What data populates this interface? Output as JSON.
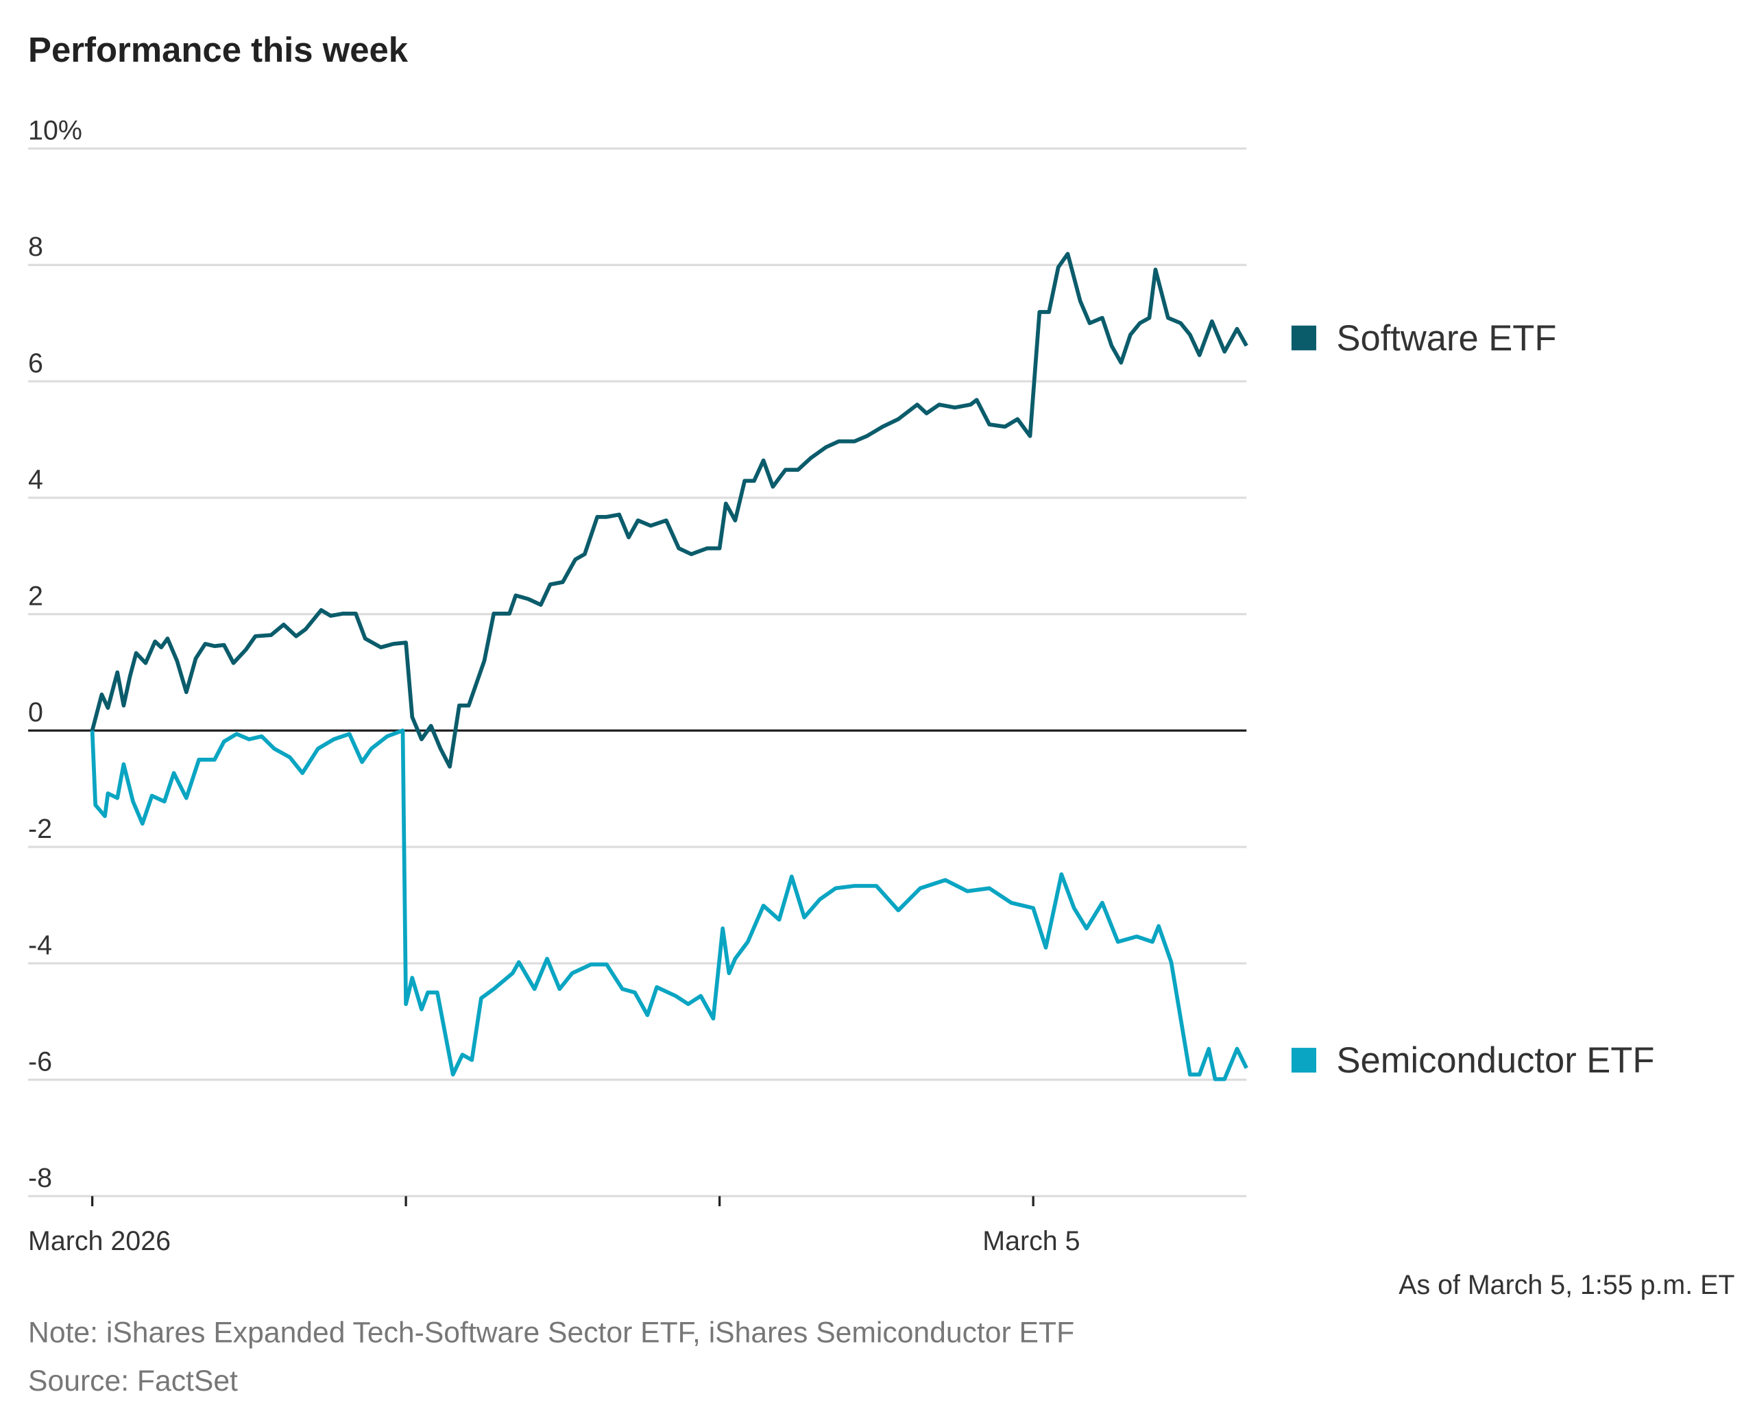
{
  "chart_data": {
    "type": "line",
    "title": "Performance this week",
    "note": "Note: iShares Expanded Tech-Software Sector ETF, iShares Semiconductor ETF",
    "source": "Source: FactSet",
    "timestamp": "As of March 5, 1:55 p.m. ET",
    "ylim": [
      -8,
      10
    ],
    "yticks": [
      {
        "value": 10,
        "label": "10%"
      },
      8,
      6,
      4,
      2,
      0,
      -2,
      -4,
      -6,
      -8
    ],
    "xlim": [
      0,
      3.68
    ],
    "xticks": [
      {
        "value": 0,
        "label": "March 2026"
      },
      {
        "value": 1,
        "label": null
      },
      {
        "value": 2,
        "label": null
      },
      {
        "value": 3,
        "label": "March 5"
      }
    ],
    "grid": true,
    "legend": "right",
    "series": [
      {
        "name": "Software ETF",
        "color": "#0b5c6b",
        "x": [
          0,
          0.03,
          0.05,
          0.08,
          0.1,
          0.12,
          0.14,
          0.17,
          0.2,
          0.22,
          0.24,
          0.27,
          0.3,
          0.33,
          0.36,
          0.39,
          0.42,
          0.45,
          0.49,
          0.52,
          0.57,
          0.61,
          0.65,
          0.68,
          0.73,
          0.76,
          0.8,
          0.84,
          0.87,
          0.92,
          0.96,
          1.0,
          1.02,
          1.05,
          1.08,
          1.11,
          1.14,
          1.17,
          1.2,
          1.25,
          1.28,
          1.33,
          1.35,
          1.39,
          1.43,
          1.46,
          1.5,
          1.54,
          1.57,
          1.61,
          1.64,
          1.68,
          1.71,
          1.74,
          1.78,
          1.83,
          1.87,
          1.91,
          1.96,
          2.0,
          2.02,
          2.05,
          2.08,
          2.11,
          2.14,
          2.17,
          2.21,
          2.25,
          2.29,
          2.34,
          2.38,
          2.43,
          2.47,
          2.52,
          2.57,
          2.63,
          2.66,
          2.7,
          2.75,
          2.8,
          2.82,
          2.86,
          2.91,
          2.95,
          2.99,
          3.02,
          3.05,
          3.08,
          3.11,
          3.15,
          3.18,
          3.22,
          3.25,
          3.28,
          3.31,
          3.34,
          3.37,
          3.39,
          3.43,
          3.47,
          3.5,
          3.53,
          3.57,
          3.61,
          3.65,
          3.68
        ],
        "values": [
          0,
          0.62,
          0.39,
          1.0,
          0.43,
          0.93,
          1.33,
          1.16,
          1.53,
          1.43,
          1.58,
          1.2,
          0.66,
          1.24,
          1.49,
          1.45,
          1.47,
          1.16,
          1.39,
          1.62,
          1.64,
          1.82,
          1.62,
          1.74,
          2.07,
          1.97,
          2.01,
          2.01,
          1.58,
          1.43,
          1.49,
          1.51,
          0.23,
          -0.15,
          0.08,
          -0.31,
          -0.62,
          0.43,
          0.43,
          1.2,
          2.01,
          2.01,
          2.32,
          2.26,
          2.16,
          2.51,
          2.55,
          2.94,
          3.03,
          3.67,
          3.67,
          3.71,
          3.32,
          3.61,
          3.52,
          3.61,
          3.13,
          3.03,
          3.13,
          3.13,
          3.9,
          3.61,
          4.29,
          4.29,
          4.64,
          4.19,
          4.48,
          4.48,
          4.68,
          4.87,
          4.97,
          4.97,
          5.06,
          5.22,
          5.35,
          5.6,
          5.45,
          5.6,
          5.55,
          5.6,
          5.68,
          5.26,
          5.22,
          5.35,
          5.06,
          7.19,
          7.19,
          7.96,
          8.19,
          7.38,
          7.0,
          7.09,
          6.61,
          6.32,
          6.8,
          7.0,
          7.09,
          7.92,
          7.09,
          7.0,
          6.8,
          6.45,
          7.03,
          6.51,
          6.9,
          6.61
        ]
      },
      {
        "name": "Semiconductor ETF",
        "color": "#0aa5c2",
        "x": [
          0,
          0.01,
          0.04,
          0.05,
          0.08,
          0.1,
          0.13,
          0.16,
          0.19,
          0.23,
          0.26,
          0.3,
          0.34,
          0.39,
          0.42,
          0.46,
          0.5,
          0.54,
          0.58,
          0.63,
          0.67,
          0.72,
          0.77,
          0.82,
          0.86,
          0.89,
          0.94,
          0.99,
          1.0,
          1.02,
          1.05,
          1.07,
          1.1,
          1.15,
          1.18,
          1.21,
          1.24,
          1.28,
          1.34,
          1.36,
          1.41,
          1.45,
          1.49,
          1.53,
          1.59,
          1.64,
          1.69,
          1.73,
          1.77,
          1.8,
          1.86,
          1.9,
          1.94,
          1.98,
          2.01,
          2.03,
          2.05,
          2.09,
          2.14,
          2.19,
          2.23,
          2.27,
          2.32,
          2.37,
          2.43,
          2.5,
          2.57,
          2.64,
          2.72,
          2.79,
          2.86,
          2.93,
          3.0,
          3.04,
          3.09,
          3.13,
          3.17,
          3.22,
          3.27,
          3.33,
          3.38,
          3.4,
          3.44,
          3.47,
          3.5,
          3.53,
          3.56,
          3.58,
          3.61,
          3.65,
          3.68
        ],
        "values": [
          0,
          -1.28,
          -1.47,
          -1.08,
          -1.16,
          -0.58,
          -1.22,
          -1.6,
          -1.12,
          -1.22,
          -0.73,
          -1.16,
          -0.5,
          -0.5,
          -0.19,
          -0.06,
          -0.15,
          -0.1,
          -0.31,
          -0.46,
          -0.73,
          -0.31,
          -0.15,
          -0.06,
          -0.54,
          -0.31,
          -0.1,
          0,
          -4.7,
          -4.25,
          -4.79,
          -4.5,
          -4.5,
          -5.91,
          -5.57,
          -5.66,
          -4.6,
          -4.44,
          -4.17,
          -3.98,
          -4.44,
          -3.92,
          -4.44,
          -4.17,
          -4.02,
          -4.02,
          -4.44,
          -4.5,
          -4.89,
          -4.41,
          -4.56,
          -4.7,
          -4.56,
          -4.95,
          -3.4,
          -4.17,
          -3.92,
          -3.63,
          -3.01,
          -3.25,
          -2.51,
          -3.21,
          -2.9,
          -2.71,
          -2.67,
          -2.67,
          -3.09,
          -2.71,
          -2.57,
          -2.76,
          -2.71,
          -2.96,
          -3.05,
          -3.73,
          -2.47,
          -3.05,
          -3.4,
          -2.96,
          -3.63,
          -3.54,
          -3.63,
          -3.36,
          -3.98,
          -4.95,
          -5.91,
          -5.91,
          -5.47,
          -5.99,
          -5.99,
          -5.47,
          -5.8
        ]
      }
    ]
  }
}
